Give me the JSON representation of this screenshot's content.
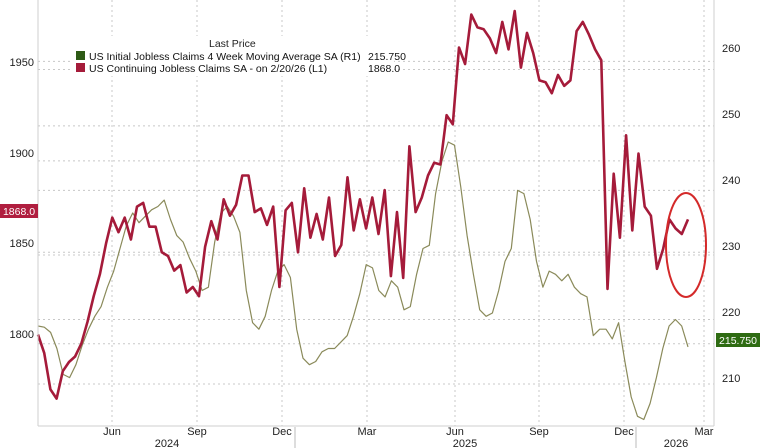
{
  "chart_data": {
    "type": "line",
    "legend": {
      "header": "Last Price",
      "placement": "top-left",
      "entries": [
        {
          "series": 0,
          "text": "US Initial Jobless Claims 4 Week Moving Average SA  (R1)",
          "value": "215.750"
        },
        {
          "series": 1,
          "text": "US Continuing Jobless Claims SA -  on 2/20/26  (L1)",
          "value": "1868.0"
        }
      ]
    },
    "x_axis": {
      "ticks": [
        "Jun",
        "Sep",
        "Dec",
        "Mar",
        "Jun",
        "Sep",
        "Dec",
        "Mar"
      ],
      "years": [
        "2024",
        "2025",
        "2026"
      ]
    },
    "y_left": {
      "ticks": [
        "1800",
        "1850",
        "1900",
        "1950"
      ],
      "ylim": [
        1755,
        1988
      ]
    },
    "y_right": {
      "ticks": [
        "210",
        "220",
        "230",
        "240",
        "250",
        "260"
      ],
      "ylim": [
        203.5,
        269.5
      ]
    },
    "last_value_badges": {
      "left": "1868.0",
      "right": "215.750"
    },
    "grid": true,
    "annotation": "red-circle-around-latest-values",
    "colors": {
      "continuing": "#a51b3a",
      "initial": "#8a8a5a",
      "badge_left": "#b01e3f",
      "badge_right": "#2e6b12",
      "legend_initial": "#2e5a16",
      "legend_continuing": "#a51b3a",
      "circle": "#d42a2a"
    },
    "series": [
      {
        "name": "US Initial Jobless Claims 4 Week Moving Average SA",
        "axis": "right",
        "values": [
          219.0,
          218.8,
          218.0,
          215.5,
          211.5,
          211.0,
          213.0,
          216.0,
          218.5,
          220.5,
          222.0,
          225.0,
          227.5,
          231.0,
          234.5,
          236.5,
          235.0,
          236.0,
          237.0,
          237.5,
          238.5,
          235.5,
          233.0,
          232.0,
          229.5,
          227.5,
          224.5,
          225.0,
          232.0,
          236.5,
          237.5,
          236.0,
          233.5,
          224.5,
          219.5,
          218.5,
          220.5,
          224.5,
          227.5,
          228.5,
          226.5,
          218.5,
          214.0,
          213.0,
          213.5,
          215.0,
          215.5,
          215.5,
          216.5,
          217.5,
          220.5,
          224.0,
          228.5,
          228.0,
          224.5,
          223.5,
          226.0,
          225.0,
          221.5,
          222.0,
          227.0,
          231.0,
          231.5,
          239.5,
          244.5,
          247.5,
          247.0,
          240.5,
          233.0,
          227.0,
          221.5,
          220.5,
          221.0,
          224.5,
          229.0,
          231.0,
          240.0,
          239.5,
          235.5,
          229.0,
          225.0,
          227.5,
          227.0,
          226.0,
          227.0,
          225.0,
          224.0,
          223.5,
          217.5,
          218.5,
          218.5,
          217.0,
          219.5,
          213.5,
          208.0,
          205.0,
          204.5,
          207.0,
          211.0,
          215.5,
          219.0,
          220.0,
          219.0,
          215.75
        ]
      },
      {
        "name": "US Continuing Jobless Claims SA",
        "axis": "left",
        "values": [
          1805,
          1795,
          1775,
          1770,
          1785,
          1790,
          1793,
          1800,
          1812,
          1826,
          1838,
          1855,
          1869,
          1861,
          1869,
          1857,
          1875,
          1877,
          1864,
          1864,
          1850,
          1848,
          1840,
          1843,
          1828,
          1831,
          1826,
          1853,
          1867,
          1857,
          1879,
          1870,
          1876,
          1892,
          1892,
          1872,
          1874,
          1865,
          1875,
          1831,
          1873,
          1877,
          1850,
          1885,
          1858,
          1871,
          1857,
          1880,
          1848,
          1854,
          1891,
          1862,
          1879,
          1863,
          1880,
          1860,
          1884,
          1837,
          1872,
          1836,
          1908,
          1872,
          1880,
          1892,
          1899,
          1898,
          1925,
          1920,
          1962,
          1953,
          1980,
          1973,
          1972,
          1967,
          1959,
          1976,
          1961,
          1982,
          1951,
          1970,
          1959,
          1944,
          1943,
          1937,
          1947,
          1941,
          1944,
          1971,
          1976,
          1969,
          1961,
          1955,
          1830,
          1893,
          1858,
          1914,
          1862,
          1904,
          1875,
          1870,
          1841,
          1852,
          1868,
          1863,
          1860,
          1868
        ]
      }
    ]
  }
}
